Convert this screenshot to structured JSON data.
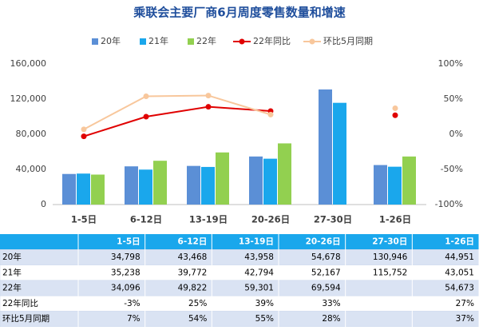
{
  "chart_data": {
    "type": "bar",
    "title": "乘联会主要厂商6月周度零售数量和增速",
    "categories": [
      "1-5日",
      "6-12日",
      "13-19日",
      "20-26日",
      "27-30日",
      "1-26日"
    ],
    "series": [
      {
        "name": "20年",
        "color": "#5b8fd6",
        "values": [
          34798,
          43468,
          43958,
          54678,
          130946,
          44951
        ],
        "value_labels": [
          "34,798",
          "43,468",
          "43,958",
          "54,678",
          "130,946",
          "44,951"
        ]
      },
      {
        "name": "21年",
        "color": "#1aa7ec",
        "values": [
          35238,
          39772,
          42794,
          52167,
          115752,
          43051
        ],
        "value_labels": [
          "35,238",
          "39,772",
          "42,794",
          "52,167",
          "115,752",
          "43,051"
        ]
      },
      {
        "name": "22年",
        "color": "#92d050",
        "values": [
          34096,
          49822,
          59301,
          69594,
          null,
          54673
        ],
        "value_labels": [
          "34,096",
          "49,822",
          "59,301",
          "69,594",
          null,
          "54,673"
        ]
      },
      {
        "name": "22年同比",
        "type": "line",
        "axis": "y2",
        "color": "#e00000",
        "values": [
          -3,
          25,
          39,
          33,
          null,
          27
        ],
        "value_labels": [
          "-3%",
          "25%",
          "39%",
          "33%",
          null,
          "27%"
        ]
      },
      {
        "name": "环比5月同期",
        "type": "line",
        "axis": "y2",
        "color": "#f8c79c",
        "values": [
          7,
          54,
          55,
          28,
          null,
          37
        ],
        "value_labels": [
          "7%",
          "54%",
          "55%",
          "28%",
          null,
          "37%"
        ]
      }
    ],
    "ylim": [
      0,
      160000
    ],
    "yticks": [
      0,
      {
        "value": 40000,
        "label": "40,000"
      },
      {
        "value": 80000,
        "label": "80,000"
      },
      {
        "value": 120000,
        "label": "120,000"
      },
      {
        "value": 160000,
        "label": "160,000"
      }
    ],
    "y2lim": [
      -100,
      100
    ],
    "y2ticks": [
      {
        "value": -100,
        "label": "-100%"
      },
      {
        "value": -50,
        "label": "-50%"
      },
      {
        "value": 0,
        "label": "0%"
      },
      {
        "value": 50,
        "label": "50%"
      },
      {
        "value": 100,
        "label": "100%"
      }
    ],
    "grid": false
  }
}
